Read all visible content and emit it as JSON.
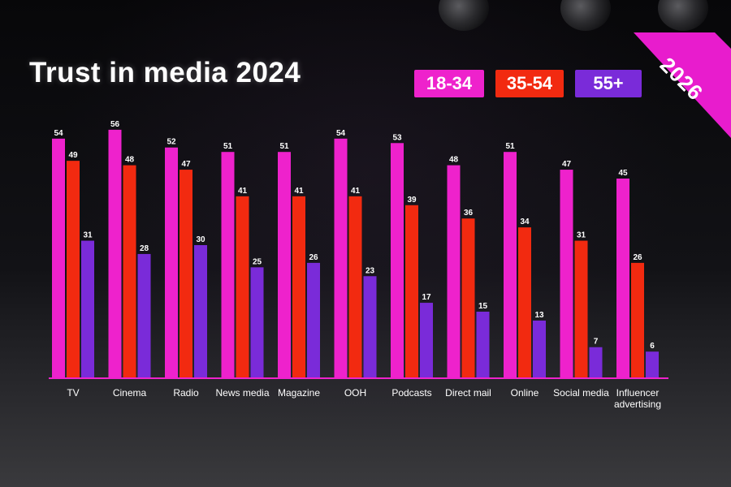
{
  "chart_data": {
    "type": "bar",
    "title": "Trust in media 2024",
    "categories": [
      "TV",
      "Cinema",
      "Radio",
      "News media",
      "Magazine",
      "OOH",
      "Podcasts",
      "Direct mail",
      "Online",
      "Social media",
      "Influencer advertising"
    ],
    "category_lines": [
      [
        "TV"
      ],
      [
        "Cinema"
      ],
      [
        "Radio"
      ],
      [
        "News media"
      ],
      [
        "Magazine"
      ],
      [
        "OOH"
      ],
      [
        "Podcasts"
      ],
      [
        "Direct mail"
      ],
      [
        "Online"
      ],
      [
        "Social media"
      ],
      [
        "Influencer",
        "advertising"
      ]
    ],
    "series": [
      {
        "name": "18-34",
        "color": "#ee22cc",
        "values": [
          54,
          56,
          52,
          51,
          51,
          54,
          53,
          48,
          51,
          47,
          45
        ]
      },
      {
        "name": "35-54",
        "color": "#f22a10",
        "values": [
          49,
          48,
          47,
          41,
          41,
          41,
          39,
          36,
          34,
          31,
          26
        ]
      },
      {
        "name": "55+",
        "color": "#7a2bd9",
        "values": [
          31,
          28,
          30,
          25,
          26,
          23,
          17,
          15,
          13,
          7,
          6
        ]
      }
    ],
    "ylim": [
      0,
      60
    ],
    "xlabel": "",
    "ylabel": "",
    "legend_position": "top-right",
    "grid": false
  },
  "corner_banner": {
    "label": "2026",
    "color": "#e81ccd"
  },
  "colors": {
    "axis": "#ee22cc",
    "text": "#ffffff"
  }
}
